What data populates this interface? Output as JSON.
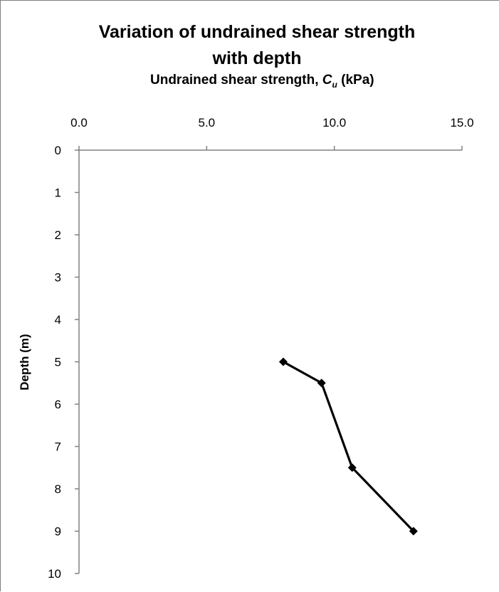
{
  "chart_data": {
    "type": "line",
    "title_line1": "Variation of undrained shear strength",
    "title_line2": "with depth",
    "xlabel_main": "Undrained shear strength, ",
    "xlabel_symbol": "C",
    "xlabel_subscript": "u",
    "xlabel_unit": " (kPa)",
    "ylabel": "Depth (m)",
    "xlim": [
      0,
      15
    ],
    "ylim": [
      0,
      10
    ],
    "x_axis_position": "top",
    "y_axis_inverted": true,
    "x_ticks": [
      "0.0",
      "5.0",
      "10.0",
      "15.0"
    ],
    "x_tick_values": [
      0,
      5,
      10,
      15
    ],
    "y_ticks": [
      "0",
      "1",
      "2",
      "3",
      "4",
      "5",
      "6",
      "7",
      "8",
      "9",
      "10"
    ],
    "y_tick_values": [
      0,
      1,
      2,
      3,
      4,
      5,
      6,
      7,
      8,
      9,
      10
    ],
    "grid": false,
    "series": [
      {
        "x": [
          8.0,
          9.5,
          10.7,
          13.1
        ],
        "y": [
          5.0,
          5.5,
          7.5,
          9.0
        ],
        "color": "#000000",
        "marker": "diamond"
      }
    ]
  }
}
